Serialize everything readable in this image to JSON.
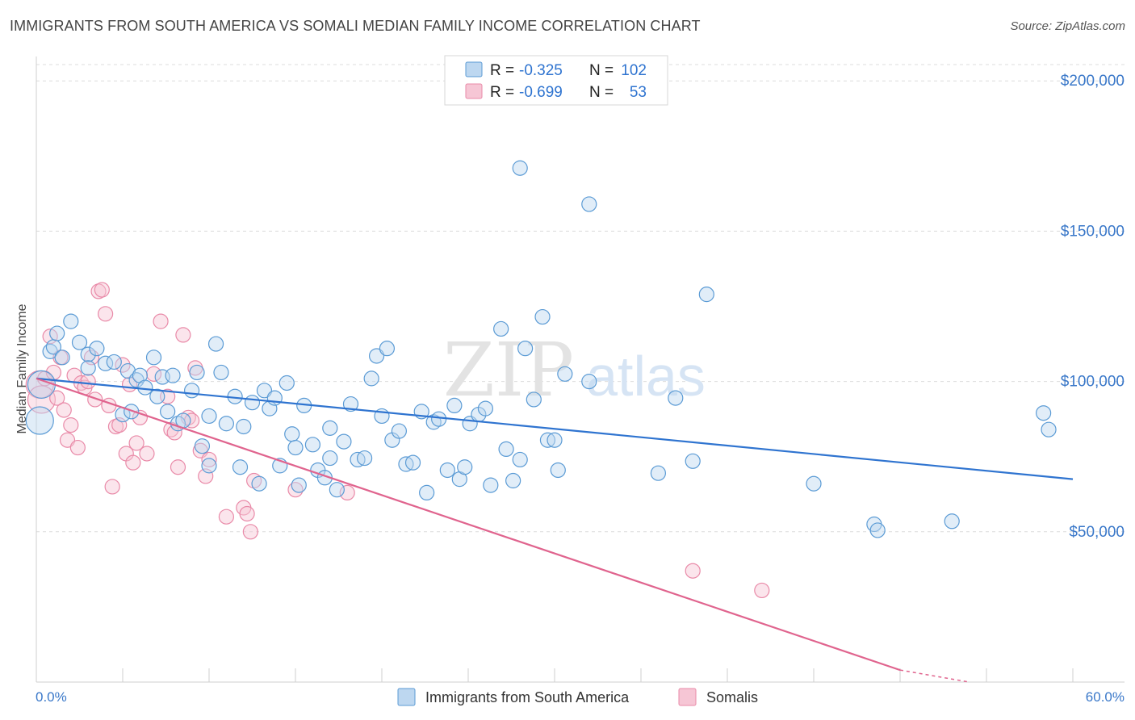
{
  "header": {
    "title": "IMMIGRANTS FROM SOUTH AMERICA VS SOMALI MEDIAN FAMILY INCOME CORRELATION CHART",
    "source": "Source: ZipAtlas.com"
  },
  "watermark": {
    "zip": "ZIP",
    "atlas": "atlas"
  },
  "colors": {
    "blue": "#5b9bd5",
    "blue_fill": "#bdd7f0",
    "blue_line": "#2f74d0",
    "pink": "#e98aa8",
    "pink_fill": "#f6c6d5",
    "pink_line": "#e0648e",
    "axis_label": "#3a78c9",
    "grid": "#dcdcdc"
  },
  "stats": {
    "r_label": "R =",
    "n_label": "N =",
    "blue": {
      "r": "-0.325",
      "n": "102"
    },
    "pink": {
      "r": "-0.699",
      "n": "53"
    }
  },
  "chart_data": {
    "type": "scatter",
    "title": "IMMIGRANTS FROM SOUTH AMERICA VS SOMALI MEDIAN FAMILY INCOME CORRELATION CHART",
    "xlabel": "",
    "ylabel": "Median Family Income",
    "xlim": [
      0,
      60
    ],
    "ylim": [
      0,
      210000
    ],
    "x_tick_labels": [
      "0.0%",
      "60.0%"
    ],
    "y_ticks": [
      50000,
      100000,
      150000,
      200000
    ],
    "y_tick_labels": [
      "$50,000",
      "$100,000",
      "$150,000",
      "$200,000"
    ],
    "grid": true,
    "legend_position": "bottom-center",
    "series": [
      {
        "name": "Immigrants from South America",
        "color": "#5b9bd5",
        "trend": {
          "x": [
            0,
            60
          ],
          "y": [
            101000,
            67500
          ]
        },
        "points": [
          [
            0.2,
            87000
          ],
          [
            0.3,
            99000
          ],
          [
            0.8,
            110000
          ],
          [
            1.0,
            111500
          ],
          [
            1.2,
            116000
          ],
          [
            1.5,
            108000
          ],
          [
            2.0,
            120000
          ],
          [
            2.5,
            113000
          ],
          [
            3.0,
            109000
          ],
          [
            3.0,
            104500
          ],
          [
            3.5,
            111000
          ],
          [
            4.0,
            106000
          ],
          [
            4.5,
            106500
          ],
          [
            5.0,
            89000
          ],
          [
            5.3,
            103500
          ],
          [
            5.5,
            90000
          ],
          [
            5.8,
            100500
          ],
          [
            6.0,
            102000
          ],
          [
            6.3,
            98000
          ],
          [
            6.8,
            108000
          ],
          [
            7.0,
            95000
          ],
          [
            7.3,
            101500
          ],
          [
            7.6,
            90000
          ],
          [
            7.9,
            102000
          ],
          [
            8.2,
            86000
          ],
          [
            8.5,
            87000
          ],
          [
            9.0,
            97000
          ],
          [
            9.3,
            103000
          ],
          [
            9.6,
            78500
          ],
          [
            10.0,
            88500
          ],
          [
            10.4,
            112500
          ],
          [
            10.7,
            103000
          ],
          [
            11.0,
            86000
          ],
          [
            11.5,
            95000
          ],
          [
            11.8,
            71500
          ],
          [
            12.0,
            85000
          ],
          [
            12.5,
            93000
          ],
          [
            12.9,
            66000
          ],
          [
            13.2,
            97000
          ],
          [
            13.5,
            91000
          ],
          [
            13.8,
            94500
          ],
          [
            14.1,
            72000
          ],
          [
            14.5,
            99500
          ],
          [
            14.8,
            82500
          ],
          [
            15.2,
            65500
          ],
          [
            15.5,
            92000
          ],
          [
            16.0,
            79000
          ],
          [
            16.3,
            70500
          ],
          [
            16.7,
            68000
          ],
          [
            17.0,
            84500
          ],
          [
            17.4,
            64000
          ],
          [
            17.8,
            80000
          ],
          [
            18.2,
            92500
          ],
          [
            18.6,
            74000
          ],
          [
            19.0,
            74500
          ],
          [
            19.4,
            101000
          ],
          [
            19.7,
            108500
          ],
          [
            20.0,
            88500
          ],
          [
            20.3,
            111000
          ],
          [
            20.6,
            80500
          ],
          [
            21.0,
            83500
          ],
          [
            21.4,
            72500
          ],
          [
            21.8,
            73000
          ],
          [
            22.3,
            90000
          ],
          [
            22.6,
            63000
          ],
          [
            23.0,
            86500
          ],
          [
            23.3,
            87500
          ],
          [
            23.8,
            70500
          ],
          [
            24.2,
            92000
          ],
          [
            24.5,
            67500
          ],
          [
            24.8,
            71500
          ],
          [
            25.1,
            86000
          ],
          [
            25.6,
            89000
          ],
          [
            26.0,
            91000
          ],
          [
            26.3,
            65500
          ],
          [
            26.9,
            117500
          ],
          [
            27.2,
            77500
          ],
          [
            27.6,
            67000
          ],
          [
            28.0,
            74000
          ],
          [
            28.3,
            111000
          ],
          [
            28.8,
            94000
          ],
          [
            29.3,
            121500
          ],
          [
            29.6,
            80500
          ],
          [
            30.0,
            80500
          ],
          [
            30.2,
            70500
          ],
          [
            30.6,
            102500
          ],
          [
            32.0,
            100000
          ],
          [
            36.0,
            69500
          ],
          [
            37.0,
            94500
          ],
          [
            38.0,
            73500
          ],
          [
            45.0,
            66000
          ],
          [
            48.5,
            52500
          ],
          [
            48.7,
            50500
          ],
          [
            53.0,
            53500
          ],
          [
            58.3,
            89500
          ],
          [
            58.6,
            84000
          ],
          [
            32.0,
            159000
          ],
          [
            28.0,
            171000
          ],
          [
            38.8,
            129000
          ],
          [
            17.0,
            74500
          ],
          [
            10.0,
            72000
          ],
          [
            15.0,
            78000
          ]
        ]
      },
      {
        "name": "Somalis",
        "color": "#e98aa8",
        "trend": {
          "x": [
            0,
            50
          ],
          "y": [
            101000,
            4000
          ]
        },
        "trend_dashed": {
          "x": [
            50,
            54
          ],
          "y": [
            4000,
            0
          ]
        },
        "points": [
          [
            0.2,
            99000
          ],
          [
            0.3,
            94000
          ],
          [
            0.5,
            101000
          ],
          [
            0.8,
            115000
          ],
          [
            1.0,
            103000
          ],
          [
            1.2,
            94500
          ],
          [
            1.4,
            108000
          ],
          [
            1.6,
            90500
          ],
          [
            1.8,
            80500
          ],
          [
            2.0,
            85500
          ],
          [
            2.2,
            102000
          ],
          [
            2.4,
            78000
          ],
          [
            2.6,
            99500
          ],
          [
            2.8,
            98000
          ],
          [
            3.0,
            100000
          ],
          [
            3.2,
            108000
          ],
          [
            3.4,
            94000
          ],
          [
            3.6,
            130000
          ],
          [
            3.8,
            130500
          ],
          [
            4.0,
            122500
          ],
          [
            4.2,
            92000
          ],
          [
            4.4,
            65000
          ],
          [
            4.6,
            85000
          ],
          [
            4.8,
            85500
          ],
          [
            5.0,
            105500
          ],
          [
            5.2,
            76000
          ],
          [
            5.4,
            99000
          ],
          [
            5.6,
            73000
          ],
          [
            5.8,
            79500
          ],
          [
            6.0,
            88000
          ],
          [
            6.4,
            76000
          ],
          [
            6.8,
            102500
          ],
          [
            7.2,
            120000
          ],
          [
            7.6,
            95000
          ],
          [
            7.8,
            84000
          ],
          [
            8.2,
            71500
          ],
          [
            8.5,
            115500
          ],
          [
            8.8,
            88000
          ],
          [
            9.0,
            87000
          ],
          [
            9.2,
            104500
          ],
          [
            9.5,
            77000
          ],
          [
            9.8,
            68500
          ],
          [
            10.0,
            74000
          ],
          [
            11.0,
            55000
          ],
          [
            12.0,
            58000
          ],
          [
            12.2,
            56000
          ],
          [
            12.4,
            50000
          ],
          [
            12.6,
            67000
          ],
          [
            15.0,
            64000
          ],
          [
            18.0,
            63000
          ],
          [
            38.0,
            37000
          ],
          [
            42.0,
            30500
          ],
          [
            8.0,
            83000
          ]
        ]
      }
    ]
  }
}
